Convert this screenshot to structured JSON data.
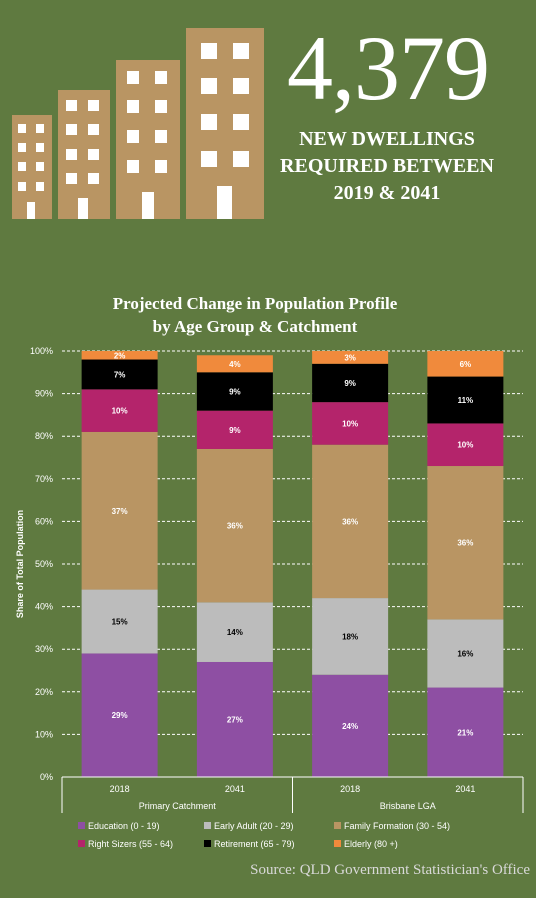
{
  "infographic": {
    "big_number": "4,379",
    "headline_lines": [
      "NEW DWELLINGS",
      "REQUIRED BETWEEN",
      "2019 & 2041"
    ],
    "source": "Source: QLD Government Statistician's Office",
    "building_icon": "apartment-buildings-icon",
    "colors": {
      "background": "#5f7a40",
      "building": "#b99563",
      "window": "#ffffff"
    }
  },
  "chart_data": {
    "type": "bar",
    "stacked": true,
    "title_lines": [
      "Projected Change in Population Profile",
      "by Age Group & Catchment"
    ],
    "ylabel": "Share of Total Population",
    "ylim": [
      0,
      100
    ],
    "yticks": [
      "0%",
      "10%",
      "20%",
      "30%",
      "40%",
      "50%",
      "60%",
      "70%",
      "80%",
      "90%",
      "100%"
    ],
    "grid": true,
    "legend_position": "bottom",
    "groups": [
      {
        "name": "Primary Catchment",
        "categories": [
          "2018",
          "2041"
        ]
      },
      {
        "name": "Brisbane LGA",
        "categories": [
          "2018",
          "2041"
        ]
      }
    ],
    "categories": [
      "2018",
      "2041",
      "2018",
      "2041"
    ],
    "series": [
      {
        "name": "Education (0 - 19)",
        "color": "#8e4fa3",
        "values": [
          29,
          27,
          24,
          21
        ],
        "labels": [
          "29%",
          "27%",
          "24%",
          "21%"
        ],
        "label_color": "#ffffff"
      },
      {
        "name": "Early Adult (20 - 29)",
        "color": "#bcbcbc",
        "values": [
          15,
          14,
          18,
          16
        ],
        "labels": [
          "15%",
          "14%",
          "18%",
          "16%"
        ],
        "label_color": "#000000"
      },
      {
        "name": "Family Formation (30 - 54)",
        "color": "#b99563",
        "values": [
          37,
          36,
          36,
          36
        ],
        "labels": [
          "37%",
          "36%",
          "36%",
          "36%"
        ],
        "label_color": "#ffffff"
      },
      {
        "name": "Right Sizers (55 - 64)",
        "color": "#b4246b",
        "values": [
          10,
          9,
          10,
          10
        ],
        "labels": [
          "10%",
          "9%",
          "10%",
          "10%"
        ],
        "label_color": "#ffffff"
      },
      {
        "name": "Retirement (65 - 79)",
        "color": "#000000",
        "values": [
          7,
          9,
          9,
          11
        ],
        "labels": [
          "7%",
          "9%",
          "9%",
          "11%"
        ],
        "label_color": "#ffffff"
      },
      {
        "name": "Elderly (80 +)",
        "color": "#f08a3c",
        "values": [
          2,
          4,
          3,
          6
        ],
        "labels": [
          "2%",
          "4%",
          "3%",
          "6%"
        ],
        "label_color": "#ffffff"
      }
    ]
  }
}
